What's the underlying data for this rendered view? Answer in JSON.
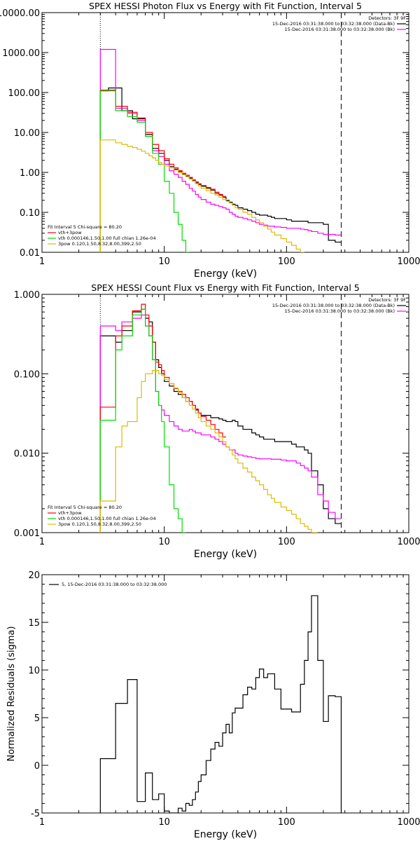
{
  "chart_data": [
    {
      "type": "line",
      "title": "SPEX HESSI Photon Flux vs Energy with Fit Function, Interval 5",
      "xlabel": "Energy (keV)",
      "ylabel": "",
      "xscale": "log",
      "yscale": "log",
      "xlim": [
        1,
        1000
      ],
      "ylim": [
        0.01,
        10000
      ],
      "x_ticks": [
        "1",
        "10",
        "100",
        "1000"
      ],
      "y_ticks": [
        "0.01",
        "0.10",
        "1.00",
        "10.00",
        "100.00",
        "1000.00",
        "10000.00"
      ],
      "legend_top_right": {
        "header": "Detectors: 3F 9F",
        "entries": [
          {
            "label": "15-Dec-2016 03:31:38.000 to 03:32:38.000 (Data-Bk)",
            "color": "#000000"
          },
          {
            "label": "15-Dec-2016 03:31:38.000 to 03:32:38.000 (Bk)",
            "color": "#ff00ff"
          }
        ]
      },
      "legend_bottom_left": {
        "header": "Fit Interval 5   Chi-square = 80.20",
        "entries": [
          {
            "label": "vth+3pow",
            "color": "#ff0000"
          },
          {
            "label": "vth 0.000146,1.50,1.00  full chian 1.26e-04",
            "color": "#00dd00"
          },
          {
            "label": "3pow 0.120,1.50,8.32,8.00,399,2.50",
            "color": "#ddbb00"
          }
        ]
      },
      "vlines": [
        {
          "x": 3,
          "style": "dotted"
        },
        {
          "x": 280,
          "style": "dashed"
        }
      ],
      "edges": [
        3.0,
        3.5,
        4.0,
        4.5,
        5.0,
        5.5,
        6.0,
        6.5,
        7.0,
        7.5,
        8.0,
        8.5,
        9.0,
        9.5,
        10.0,
        11.0,
        12.0,
        13.0,
        14.0,
        15.0,
        16.0,
        17.0,
        18.0,
        19.0,
        20.0,
        22.0,
        24.0,
        26.0,
        28.0,
        30.0,
        32.0,
        34.0,
        36.0,
        38.0,
        40.0,
        44.0,
        48.0,
        52.0,
        56.0,
        60.0,
        65.0,
        70.0,
        75.0,
        80.0,
        90.0,
        100.0,
        110.0,
        120.0,
        130.0,
        140.0,
        150.0,
        160.0,
        180.0,
        200.0,
        220.0,
        250.0,
        280.0
      ],
      "series": [
        {
          "name": "15-Dec-2016 03:31:38.000 to 03:32:38.000 (Data-Bk)",
          "color": "#000000",
          "values": [
            110,
            130,
            130,
            35,
            35,
            22,
            22,
            22,
            9,
            9,
            4,
            4,
            3,
            3,
            2,
            1.4,
            1.2,
            1.05,
            0.9,
            0.8,
            0.72,
            0.62,
            0.55,
            0.5,
            0.45,
            0.4,
            0.36,
            0.3,
            0.27,
            0.24,
            0.2,
            0.18,
            0.16,
            0.15,
            0.13,
            0.12,
            0.11,
            0.1,
            0.09,
            0.085,
            0.085,
            0.08,
            0.075,
            0.07,
            0.07,
            0.065,
            0.06,
            0.06,
            0.06,
            0.06,
            0.055,
            0.055,
            0.055,
            0.05,
            0.02,
            0.018
          ]
        },
        {
          "name": "15-Dec-2016 03:31:38.000 to 03:32:38.000 (Bk)",
          "color": "#ff00ff",
          "values": [
            1200,
            1200,
            40,
            40,
            30,
            30,
            20,
            20,
            8,
            8,
            3.5,
            3.5,
            2.5,
            2.5,
            1.6,
            1.1,
            0.9,
            0.75,
            0.6,
            0.5,
            0.4,
            0.34,
            0.28,
            0.24,
            0.21,
            0.18,
            0.16,
            0.15,
            0.14,
            0.13,
            0.12,
            0.1,
            0.09,
            0.08,
            0.075,
            0.07,
            0.065,
            0.06,
            0.055,
            0.05,
            0.048,
            0.045,
            0.045,
            0.043,
            0.042,
            0.04,
            0.04,
            0.04,
            0.038,
            0.037,
            0.035,
            0.033,
            0.03,
            0.028,
            0.028,
            0.027
          ]
        },
        {
          "name": "vth+3pow",
          "color": "#ff0000",
          "values": [
            115,
            115,
            45,
            45,
            32,
            32,
            23,
            23,
            10,
            10,
            5,
            5,
            3.5,
            3.5,
            2.2,
            1.6,
            1.3,
            1.1,
            0.95,
            0.85,
            0.75,
            0.65,
            0.58,
            0.52,
            0.47,
            0.42,
            0.38,
            0.32,
            0.28,
            0.25
          ]
        },
        {
          "name": "vth 0.000146,1.50,1.00  full chian 1.26e-04",
          "color": "#00dd00",
          "values": [
            110,
            110,
            35,
            35,
            25,
            25,
            18,
            18,
            8,
            8,
            3,
            3,
            1.6,
            1.6,
            0.6,
            0.3,
            0.1,
            0.05,
            0.02,
            0.01
          ]
        },
        {
          "name": "3pow 0.120,1.50,8.32,8.00,399,2.50",
          "color": "#ddbb00",
          "values": [
            6.5,
            6.5,
            5.5,
            5,
            4.5,
            4.2,
            3.8,
            3.4,
            3.0,
            2.6,
            2.3,
            2.0,
            1.8,
            1.6,
            1.45,
            1.3,
            1.15,
            1.0,
            0.88,
            0.78,
            0.68,
            0.6,
            0.52,
            0.46,
            0.4,
            0.35,
            0.3,
            0.27,
            0.24,
            0.21,
            0.19,
            0.17,
            0.15,
            0.13,
            0.12,
            0.1,
            0.09,
            0.075,
            0.065,
            0.055,
            0.045,
            0.038,
            0.032,
            0.027,
            0.022,
            0.018,
            0.015,
            0.012,
            0.01
          ]
        }
      ]
    },
    {
      "type": "line",
      "title": "SPEX HESSI Count Flux vs Energy with Fit Function, Interval 5",
      "xlabel": "Energy (keV)",
      "ylabel": "",
      "xscale": "log",
      "yscale": "log",
      "xlim": [
        1,
        1000
      ],
      "ylim": [
        0.001,
        1
      ],
      "x_ticks": [
        "1",
        "10",
        "100",
        "1000"
      ],
      "y_ticks": [
        "0.001",
        "0.010",
        "0.100",
        "1.000"
      ],
      "legend_top_right": {
        "header": "Detectors: 3F 9F",
        "entries": [
          {
            "label": "15-Dec-2016 03:31:38.000 to 03:32:38.000 (Data-Bk)",
            "color": "#000000"
          },
          {
            "label": "15-Dec-2016 03:31:38.000 to 03:32:38.000 (Bk)",
            "color": "#ff00ff"
          }
        ]
      },
      "legend_bottom_left": {
        "header": "Fit Interval 5   Chi-square = 80.20",
        "entries": [
          {
            "label": "vth+3pow",
            "color": "#ff0000"
          },
          {
            "label": "vth 0.000146,1.50,1.00  full chian 1.26e-04",
            "color": "#00dd00"
          },
          {
            "label": "3pow 0.120,1.50,8.32,8.00,399,2.50",
            "color": "#ddbb00"
          }
        ]
      },
      "vlines": [
        {
          "x": 3,
          "style": "dotted"
        },
        {
          "x": 280,
          "style": "dashed"
        }
      ],
      "edges": [
        3.0,
        3.5,
        4.0,
        4.5,
        5.0,
        5.5,
        6.0,
        6.5,
        7.0,
        7.5,
        8.0,
        8.5,
        9.0,
        9.5,
        10.0,
        11.0,
        12.0,
        13.0,
        14.0,
        15.0,
        16.0,
        17.0,
        18.0,
        19.0,
        20.0,
        22.0,
        24.0,
        26.0,
        28.0,
        30.0,
        32.0,
        34.0,
        36.0,
        38.0,
        40.0,
        44.0,
        48.0,
        52.0,
        56.0,
        60.0,
        65.0,
        70.0,
        75.0,
        80.0,
        90.0,
        100.0,
        110.0,
        120.0,
        130.0,
        140.0,
        150.0,
        160.0,
        180.0,
        200.0,
        220.0,
        250.0,
        280.0
      ],
      "series": [
        {
          "name": "15-Dec-2016 03:31:38.000 to 03:32:38.000 (Data-Bk)",
          "color": "#000000",
          "values": [
            0.3,
            0.3,
            0.25,
            0.35,
            0.35,
            0.6,
            0.6,
            0.65,
            0.5,
            0.45,
            0.25,
            0.15,
            0.12,
            0.1,
            0.08,
            0.07,
            0.06,
            0.055,
            0.05,
            0.045,
            0.045,
            0.04,
            0.035,
            0.032,
            0.03,
            0.03,
            0.028,
            0.028,
            0.027,
            0.026,
            0.025,
            0.025,
            0.026,
            0.025,
            0.022,
            0.02,
            0.02,
            0.018,
            0.017,
            0.016,
            0.015,
            0.015,
            0.015,
            0.014,
            0.014,
            0.014,
            0.013,
            0.012,
            0.012,
            0.011,
            0.01,
            0.006,
            0.004,
            0.002,
            0.0015,
            0.0013
          ]
        },
        {
          "name": "15-Dec-2016 03:31:38.000 to 03:32:38.000 (Bk)",
          "color": "#ff00ff",
          "values": [
            0.4,
            0.4,
            0.35,
            0.45,
            0.45,
            0.5,
            0.5,
            0.55,
            0.4,
            0.3,
            0.15,
            0.06,
            0.04,
            0.035,
            0.03,
            0.025,
            0.022,
            0.02,
            0.019,
            0.019,
            0.02,
            0.019,
            0.018,
            0.018,
            0.017,
            0.017,
            0.016,
            0.015,
            0.014,
            0.013,
            0.012,
            0.011,
            0.011,
            0.01,
            0.0095,
            0.0092,
            0.009,
            0.0088,
            0.0086,
            0.0085,
            0.0085,
            0.0085,
            0.0084,
            0.0084,
            0.0082,
            0.008,
            0.008,
            0.0075,
            0.007,
            0.0065,
            0.006,
            0.005,
            0.003,
            0.0025,
            0.0018,
            0.0015
          ]
        },
        {
          "name": "vth+3pow",
          "color": "#ff0000",
          "values": [
            0.038,
            0.038,
            0.3,
            0.4,
            0.4,
            0.62,
            0.62,
            0.75,
            0.55,
            0.4,
            0.25,
            0.14,
            0.13,
            0.11,
            0.09,
            0.075,
            0.065,
            0.06,
            0.055,
            0.05,
            0.045,
            0.04,
            0.036,
            0.032,
            0.029,
            0.026,
            0.023,
            0.02,
            0.018,
            0.016
          ]
        },
        {
          "name": "vth 0.000146,1.50,1.00  full chian 1.26e-04",
          "color": "#00dd00",
          "values": [
            0.026,
            0.026,
            0.2,
            0.3,
            0.3,
            0.55,
            0.55,
            0.65,
            0.4,
            0.3,
            0.15,
            0.06,
            0.04,
            0.025,
            0.012,
            0.004,
            0.002,
            0.0015,
            0.001
          ]
        },
        {
          "name": "3pow 0.120,1.50,8.32,8.00,399,2.50",
          "color": "#ddbb00",
          "values": [
            0.0025,
            0.0025,
            0.012,
            0.022,
            0.025,
            0.025,
            0.05,
            0.08,
            0.1,
            0.1,
            0.11,
            0.11,
            0.1,
            0.095,
            0.085,
            0.075,
            0.066,
            0.058,
            0.05,
            0.045,
            0.04,
            0.036,
            0.032,
            0.028,
            0.025,
            0.022,
            0.02,
            0.018,
            0.016,
            0.014,
            0.012,
            0.011,
            0.0095,
            0.0085,
            0.0075,
            0.0065,
            0.0058,
            0.005,
            0.0045,
            0.004,
            0.0035,
            0.003,
            0.0027,
            0.0024,
            0.0021,
            0.0019,
            0.0017,
            0.0015,
            0.0013,
            0.0012,
            0.0011,
            0.001
          ]
        }
      ]
    },
    {
      "type": "line",
      "title": "",
      "xlabel": "Energy (keV)",
      "ylabel": "Normalized Residuals (sigma)",
      "xscale": "log",
      "yscale": "linear",
      "xlim": [
        1,
        1000
      ],
      "ylim": [
        -5,
        20
      ],
      "x_ticks": [
        "1",
        "10",
        "100",
        "1000"
      ],
      "y_ticks": [
        "-5",
        "0",
        "5",
        "10",
        "15",
        "20"
      ],
      "legend": {
        "entries": [
          {
            "label": "5, 15-Dec-2016 03:31:38.000 to 03:32:38.000",
            "color": "#000000"
          }
        ]
      },
      "edges": [
        3.0,
        3.5,
        4.0,
        4.5,
        5.0,
        5.5,
        6.0,
        6.5,
        7.0,
        7.5,
        8.0,
        8.5,
        9.0,
        9.5,
        10.0,
        11.0,
        12.0,
        13.0,
        14.0,
        15.0,
        16.0,
        17.0,
        18.0,
        19.0,
        20.0,
        22.0,
        24.0,
        26.0,
        28.0,
        30.0,
        32.0,
        34.0,
        36.0,
        38.0,
        40.0,
        44.0,
        48.0,
        52.0,
        56.0,
        60.0,
        65.0,
        70.0,
        75.0,
        80.0,
        90.0,
        100.0,
        110.0,
        120.0,
        130.0,
        140.0,
        150.0,
        160.0,
        180.0,
        200.0,
        220.0,
        250.0,
        280.0
      ],
      "series": [
        {
          "name": "5, 15-Dec-2016 03:31:38.000 to 03:32:38.000",
          "color": "#000000",
          "values": [
            0.7,
            0.7,
            6.5,
            6.5,
            9.0,
            9.0,
            -3.8,
            -3.8,
            -0.8,
            -0.8,
            -3.6,
            -3.6,
            -3.0,
            -3.0,
            -4.8,
            -5.0,
            -5.0,
            -4.5,
            -4.8,
            -4.0,
            -4.2,
            -3.6,
            -2.8,
            -1.7,
            -1.0,
            0.5,
            1.7,
            2.4,
            2.0,
            3.4,
            4.3,
            3.4,
            5.5,
            6.0,
            6.0,
            7.4,
            8.2,
            8.0,
            9.2,
            10.1,
            9.2,
            9.6,
            9.6,
            8.0,
            5.9,
            5.9,
            5.6,
            5.6,
            8.5,
            11.0,
            14.0,
            17.8,
            11.0,
            4.6,
            7.3,
            7.2
          ]
        }
      ]
    }
  ]
}
